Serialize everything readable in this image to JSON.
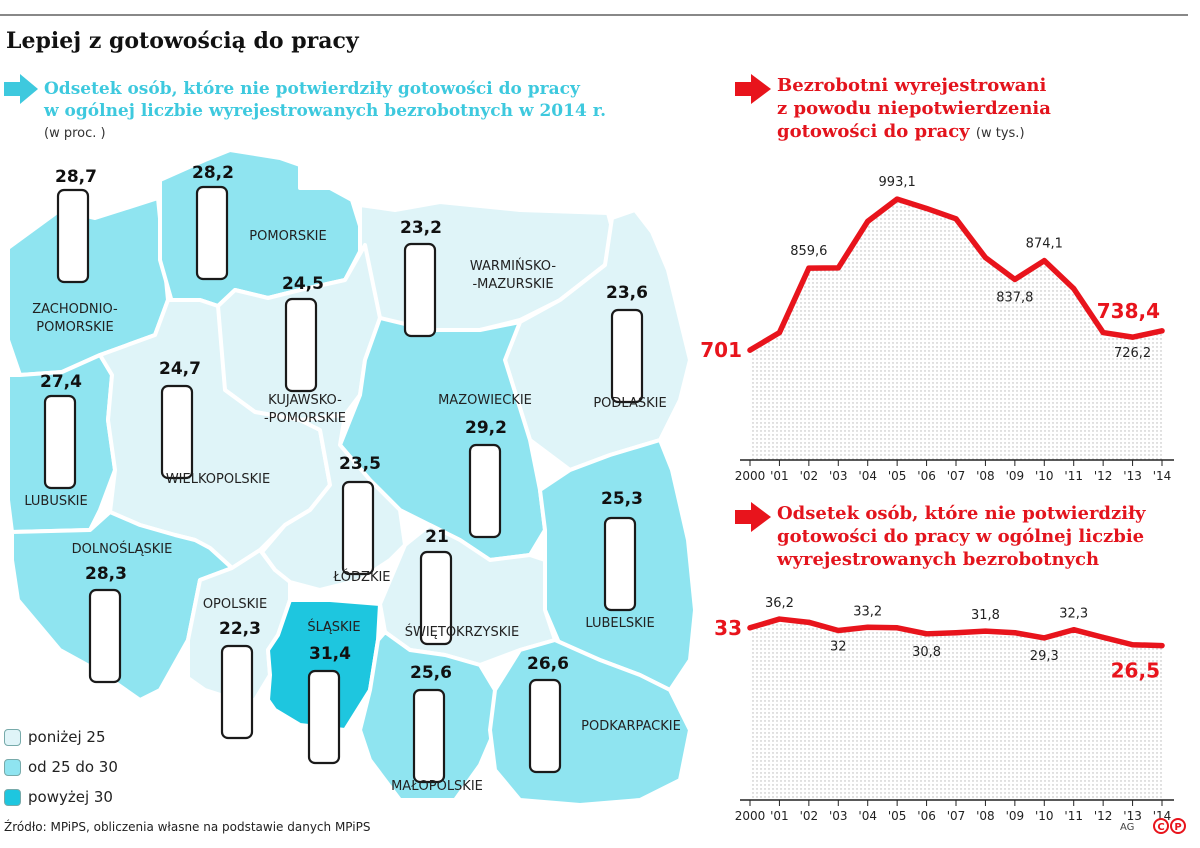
{
  "title": "Lepiej z gotowością do pracy",
  "map": {
    "subtitle_line1": "Odsetek osób, które nie potwierdziły gotowości do pracy",
    "subtitle_line2": "w ogólnej liczbie wyrejestrowanych bezrobotnych w 2014 r.",
    "unit": "(w proc. )",
    "regions": [
      {
        "name_lines": [
          "ZACHODNIO-",
          "POMORSKIE"
        ],
        "value": 28.7,
        "value_label": "28,7",
        "category": "mid"
      },
      {
        "name_lines": [
          "POMORSKIE"
        ],
        "value": 28.2,
        "value_label": "28,2",
        "category": "mid"
      },
      {
        "name_lines": [
          "WARMIŃSKO-",
          "-MAZURSKIE"
        ],
        "value": 23.2,
        "value_label": "23,2",
        "category": "low"
      },
      {
        "name_lines": [
          "PODLASKIE"
        ],
        "value": 23.6,
        "value_label": "23,6",
        "category": "low"
      },
      {
        "name_lines": [
          "KUJAWSKO-",
          "-POMORSKIE"
        ],
        "value": 24.5,
        "value_label": "24,5",
        "category": "low"
      },
      {
        "name_lines": [
          "LUBUSKIE"
        ],
        "value": 27.4,
        "value_label": "27,4",
        "category": "mid"
      },
      {
        "name_lines": [
          "WIELKOPOLSKIE"
        ],
        "value": 24.7,
        "value_label": "24,7",
        "category": "low"
      },
      {
        "name_lines": [
          "MAZOWIECKIE"
        ],
        "value": 29.2,
        "value_label": "29,2",
        "category": "mid"
      },
      {
        "name_lines": [
          "ŁÓDZKIE"
        ],
        "value": 23.5,
        "value_label": "23,5",
        "category": "low"
      },
      {
        "name_lines": [
          "LUBELSKIE"
        ],
        "value": 25.3,
        "value_label": "25,3",
        "category": "mid"
      },
      {
        "name_lines": [
          "DOLNOŚLĄSKIE"
        ],
        "value": 28.3,
        "value_label": "28,3",
        "category": "mid"
      },
      {
        "name_lines": [
          "OPOLSKIE"
        ],
        "value": 22.3,
        "value_label": "22,3",
        "category": "low"
      },
      {
        "name_lines": [
          "ŚLĄSKIE"
        ],
        "value": 31.4,
        "value_label": "31,4",
        "category": "high"
      },
      {
        "name_lines": [
          "ŚWIĘTOKRZYSKIE"
        ],
        "value": 21,
        "value_label": "21",
        "category": "low"
      },
      {
        "name_lines": [
          "MAŁOPOLSKIE"
        ],
        "value": 25.6,
        "value_label": "25,6",
        "category": "mid"
      },
      {
        "name_lines": [
          "PODKARPACKIE"
        ],
        "value": 26.6,
        "value_label": "26,6",
        "category": "mid"
      }
    ]
  },
  "legend": {
    "items": [
      {
        "label": "poniżej 25",
        "color": "#dff4f8"
      },
      {
        "label": "od 25 do 30",
        "color": "#8fe4f0"
      },
      {
        "label": "powyżej 30",
        "color": "#1ec6df"
      }
    ]
  },
  "colors": {
    "low": "#dff4f8",
    "mid": "#8fe4f0",
    "high": "#1ec6df",
    "line": "#e8141c",
    "accent_cyan": "#3ec9de"
  },
  "chart1": {
    "title_line1": "Bezrobotni wyrejestrowani",
    "title_line2": "z powodu niepotwierdzenia",
    "title_line3": "gotowości do pracy",
    "unit": "(w tys.)"
  },
  "chart2": {
    "title_line1": "Odsetek osób, które nie potwierdziły",
    "title_line2": "gotowości do pracy w ogólnej liczbie",
    "title_line3": "wyrejestrowanych bezrobotnych"
  },
  "chart_data": [
    {
      "type": "line",
      "x": [
        "2000",
        "'01",
        "'02",
        "'03",
        "'04",
        "'05",
        "'06",
        "'07",
        "'08",
        "'09",
        "'10",
        "'11",
        "'12",
        "'13",
        "'14"
      ],
      "series": [
        {
          "values": [
            701,
            735,
            859.6,
            860,
            950,
            993.1,
            975,
            955,
            880,
            837.8,
            874.1,
            820,
            735,
            726.2,
            738.4
          ]
        }
      ],
      "point_labels": [
        {
          "index": 0,
          "text": "701"
        },
        {
          "index": 2,
          "text": "859,6"
        },
        {
          "index": 5,
          "text": "993,1"
        },
        {
          "index": 9,
          "text": "837,8"
        },
        {
          "index": 10,
          "text": "874,1"
        },
        {
          "index": 13,
          "text": "726,2"
        },
        {
          "index": 14,
          "text": "738,4"
        }
      ],
      "ylim": [
        450,
        1030
      ],
      "grid": false
    },
    {
      "type": "line",
      "x": [
        "2000",
        "'01",
        "'02",
        "'03",
        "'04",
        "'05",
        "'06",
        "'07",
        "'08",
        "'09",
        "'10",
        "'11",
        "'12",
        "'13",
        "'14"
      ],
      "series": [
        {
          "values": [
            33,
            36.2,
            35,
            32,
            33.2,
            33,
            30.8,
            31.2,
            31.8,
            31.2,
            29.3,
            32.3,
            29.5,
            26.8,
            26.5
          ]
        }
      ],
      "point_labels": [
        {
          "index": 0,
          "text": "33"
        },
        {
          "index": 1,
          "text": "36,2"
        },
        {
          "index": 3,
          "text": "32"
        },
        {
          "index": 4,
          "text": "33,2"
        },
        {
          "index": 6,
          "text": "30,8"
        },
        {
          "index": 8,
          "text": "31,8"
        },
        {
          "index": 10,
          "text": "29,3"
        },
        {
          "index": 11,
          "text": "32,3"
        },
        {
          "index": 14,
          "text": "26,5"
        }
      ],
      "ylim": [
        -30,
        45
      ],
      "grid": false
    }
  ],
  "source": "Źródło: MPiPS, obliczenia własne na podstawie danych MPiPS",
  "author": "AG",
  "logo": "ⒸⓅ"
}
